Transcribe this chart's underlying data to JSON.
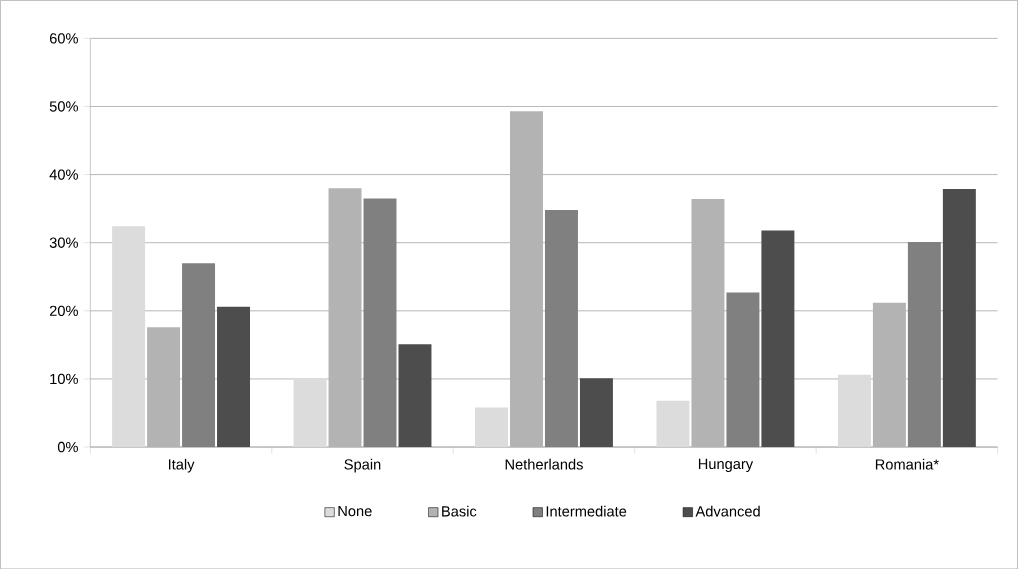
{
  "chart_data": {
    "type": "bar",
    "categories": [
      "Italy",
      "Spain",
      "Netherlands",
      "Hungary",
      "Romania*"
    ],
    "series": [
      {
        "name": "None",
        "color": "#dcdcdc",
        "values": [
          32.4,
          10.1,
          5.8,
          6.8,
          10.6
        ]
      },
      {
        "name": "Basic",
        "color": "#b3b3b3",
        "values": [
          17.6,
          38.0,
          49.3,
          36.4,
          21.2
        ]
      },
      {
        "name": "Intermediate",
        "color": "#808080",
        "values": [
          27.0,
          36.5,
          34.8,
          22.7,
          30.1
        ]
      },
      {
        "name": "Advanced",
        "color": "#4d4d4d",
        "values": [
          20.6,
          15.1,
          10.1,
          31.8,
          37.9
        ]
      }
    ],
    "ylim": [
      0,
      60
    ],
    "yticks": [
      {
        "value": 0,
        "label": "0%"
      },
      {
        "value": 10,
        "label": "10%"
      },
      {
        "value": 20,
        "label": "20%"
      },
      {
        "value": 30,
        "label": "30%"
      },
      {
        "value": 40,
        "label": "40%"
      },
      {
        "value": 50,
        "label": "50%"
      },
      {
        "value": 60,
        "label": "60%"
      }
    ],
    "grid": "y",
    "legend": "bottom"
  }
}
